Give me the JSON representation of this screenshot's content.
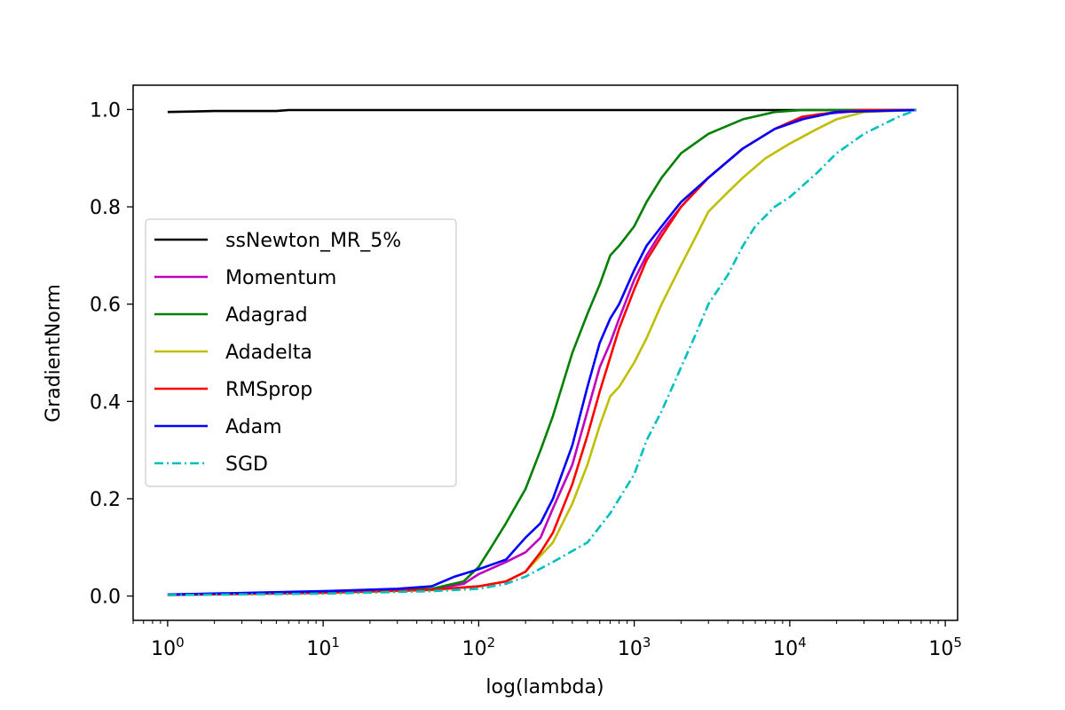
{
  "chart_data": {
    "type": "line",
    "title": "",
    "xlabel": "log(lambda)",
    "ylabel": "GradientNorm",
    "xscale": "log",
    "xlim": [
      0.6,
      120000
    ],
    "ylim": [
      -0.05,
      1.05
    ],
    "xticks": [
      {
        "value": 1,
        "base": "10",
        "exp": "0"
      },
      {
        "value": 10,
        "base": "10",
        "exp": "1"
      },
      {
        "value": 100,
        "base": "10",
        "exp": "2"
      },
      {
        "value": 1000,
        "base": "10",
        "exp": "3"
      },
      {
        "value": 10000,
        "base": "10",
        "exp": "4"
      },
      {
        "value": 100000,
        "base": "10",
        "exp": "5"
      }
    ],
    "yticks": [
      {
        "value": 0.0,
        "label": "0.0"
      },
      {
        "value": 0.2,
        "label": "0.2"
      },
      {
        "value": 0.4,
        "label": "0.4"
      },
      {
        "value": 0.6,
        "label": "0.6"
      },
      {
        "value": 0.8,
        "label": "0.8"
      },
      {
        "value": 1.0,
        "label": "1.0"
      }
    ],
    "grid": false,
    "legend_position": "center-left",
    "series": [
      {
        "name": "ssNewton_MR_5%",
        "color": "#000000",
        "dash": "solid",
        "x": [
          1,
          1.5,
          2,
          5,
          6,
          10,
          100,
          1000,
          10000,
          65000
        ],
        "y": [
          0.995,
          0.996,
          0.997,
          0.997,
          0.999,
          0.999,
          0.999,
          0.999,
          0.999,
          0.999
        ]
      },
      {
        "name": "Momentum",
        "color": "#bf00bf",
        "dash": "solid",
        "x": [
          1,
          10,
          50,
          80,
          100,
          150,
          200,
          250,
          300,
          400,
          500,
          600,
          700,
          800,
          1000,
          1200,
          1500,
          2000,
          3000,
          5000,
          8000,
          15000,
          30000,
          65000
        ],
        "y": [
          0.003,
          0.008,
          0.014,
          0.025,
          0.045,
          0.07,
          0.09,
          0.12,
          0.18,
          0.27,
          0.38,
          0.47,
          0.52,
          0.57,
          0.65,
          0.7,
          0.75,
          0.8,
          0.86,
          0.92,
          0.96,
          0.99,
          0.998,
          0.999
        ]
      },
      {
        "name": "Adagrad",
        "color": "#008000",
        "dash": "solid",
        "x": [
          1,
          10,
          50,
          80,
          100,
          120,
          150,
          200,
          250,
          300,
          400,
          500,
          600,
          700,
          800,
          1000,
          1200,
          1500,
          2000,
          3000,
          5000,
          8000,
          12000,
          20000,
          65000
        ],
        "y": [
          0.003,
          0.008,
          0.015,
          0.03,
          0.06,
          0.1,
          0.15,
          0.22,
          0.3,
          0.37,
          0.5,
          0.58,
          0.64,
          0.7,
          0.72,
          0.76,
          0.81,
          0.86,
          0.91,
          0.95,
          0.98,
          0.995,
          0.999,
          0.999,
          0.999
        ]
      },
      {
        "name": "Adadelta",
        "color": "#bfbf00",
        "dash": "solid",
        "x": [
          1,
          10,
          50,
          100,
          150,
          200,
          300,
          400,
          500,
          600,
          700,
          800,
          1000,
          1200,
          1500,
          2000,
          2500,
          3000,
          4000,
          5000,
          7000,
          10000,
          15000,
          20000,
          30000,
          65000
        ],
        "y": [
          0.002,
          0.006,
          0.012,
          0.02,
          0.03,
          0.05,
          0.11,
          0.19,
          0.27,
          0.35,
          0.41,
          0.43,
          0.48,
          0.53,
          0.6,
          0.68,
          0.74,
          0.79,
          0.83,
          0.86,
          0.9,
          0.93,
          0.96,
          0.98,
          0.995,
          0.999
        ]
      },
      {
        "name": "RMSprop",
        "color": "#ff0000",
        "dash": "solid",
        "x": [
          1,
          10,
          50,
          100,
          150,
          200,
          250,
          300,
          400,
          500,
          600,
          700,
          800,
          1000,
          1200,
          1500,
          2000,
          3000,
          5000,
          8000,
          12000,
          20000,
          30000,
          65000
        ],
        "y": [
          0.002,
          0.007,
          0.013,
          0.02,
          0.03,
          0.05,
          0.09,
          0.13,
          0.23,
          0.33,
          0.42,
          0.49,
          0.55,
          0.63,
          0.69,
          0.74,
          0.8,
          0.86,
          0.92,
          0.96,
          0.985,
          0.995,
          0.999,
          0.999
        ]
      },
      {
        "name": "Adam",
        "color": "#0000ff",
        "dash": "solid",
        "x": [
          1,
          10,
          30,
          50,
          70,
          100,
          150,
          200,
          250,
          300,
          400,
          500,
          600,
          700,
          800,
          1000,
          1200,
          1500,
          2000,
          3000,
          5000,
          8000,
          12000,
          20000,
          65000
        ],
        "y": [
          0.003,
          0.01,
          0.015,
          0.02,
          0.04,
          0.055,
          0.075,
          0.12,
          0.15,
          0.2,
          0.31,
          0.43,
          0.52,
          0.57,
          0.6,
          0.67,
          0.72,
          0.76,
          0.81,
          0.86,
          0.92,
          0.96,
          0.98,
          0.995,
          0.999
        ]
      },
      {
        "name": "SGD",
        "color": "#00bfbf",
        "dash": "dashdot",
        "x": [
          1,
          10,
          50,
          100,
          150,
          200,
          300,
          500,
          700,
          1000,
          1200,
          1500,
          2000,
          2500,
          3000,
          4000,
          5000,
          6000,
          8000,
          10000,
          15000,
          20000,
          30000,
          40000,
          50000,
          65000
        ],
        "y": [
          0.002,
          0.005,
          0.01,
          0.015,
          0.025,
          0.04,
          0.07,
          0.11,
          0.17,
          0.25,
          0.32,
          0.38,
          0.47,
          0.54,
          0.6,
          0.66,
          0.72,
          0.76,
          0.8,
          0.82,
          0.87,
          0.91,
          0.95,
          0.97,
          0.985,
          0.999
        ]
      }
    ]
  }
}
